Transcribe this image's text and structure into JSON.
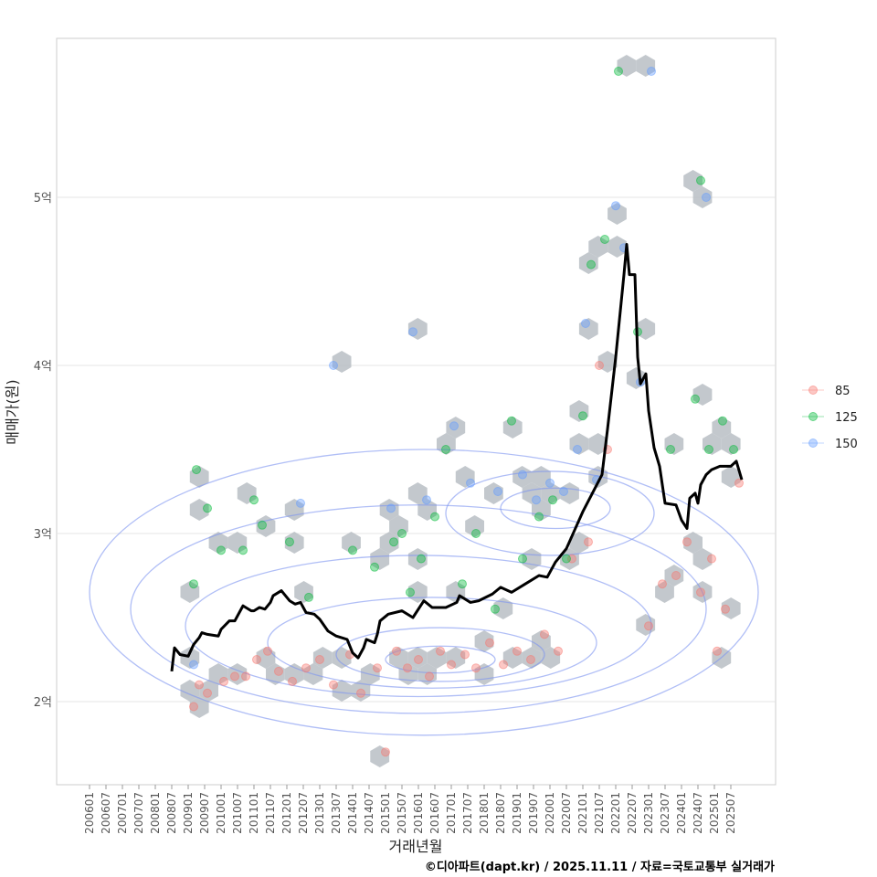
{
  "chart_data": {
    "type": "scatter",
    "title": "",
    "xlabel": "거래년월",
    "ylabel": "매매가(원)",
    "caption": "©디아파트(dapt.kr) / 2025.11.11 / 자료=국토교통부 실거래가",
    "x_ticks": [
      "200601",
      "200607",
      "200701",
      "200707",
      "200801",
      "200807",
      "200901",
      "200907",
      "201001",
      "201007",
      "201101",
      "201107",
      "201201",
      "201207",
      "201301",
      "201307",
      "201401",
      "201407",
      "201501",
      "201507",
      "201601",
      "201607",
      "201701",
      "201707",
      "201801",
      "201807",
      "201901",
      "201907",
      "202001",
      "202007",
      "202101",
      "202107",
      "202201",
      "202207",
      "202301",
      "202307",
      "202401",
      "202407",
      "202501",
      "202507"
    ],
    "y_ticks": [
      {
        "value": 2,
        "label": "2억"
      },
      {
        "value": 3,
        "label": "3억"
      },
      {
        "value": 4,
        "label": "4억"
      },
      {
        "value": 5,
        "label": "5억"
      }
    ],
    "ylim": [
      1.5,
      5.95
    ],
    "y_unit": "억원",
    "grid": "horizontal",
    "legend": {
      "position": "right",
      "entries": [
        {
          "label": "85",
          "color": "#F8766D"
        },
        {
          "label": "125",
          "color": "#00BA38"
        },
        {
          "label": "150",
          "color": "#619CFF"
        }
      ]
    },
    "series": [
      {
        "name": "85",
        "color": "#F8766D",
        "points": [
          [
            "2009-03",
            1.97
          ],
          [
            "2009-05",
            2.1
          ],
          [
            "2009-08",
            2.05
          ],
          [
            "2010-02",
            2.12
          ],
          [
            "2010-06",
            2.15
          ],
          [
            "2010-10",
            2.15
          ],
          [
            "2011-02",
            2.25
          ],
          [
            "2011-06",
            2.3
          ],
          [
            "2011-10",
            2.18
          ],
          [
            "2012-03",
            2.12
          ],
          [
            "2012-08",
            2.2
          ],
          [
            "2013-01",
            2.25
          ],
          [
            "2013-06",
            2.1
          ],
          [
            "2013-12",
            2.28
          ],
          [
            "2014-04",
            2.05
          ],
          [
            "2014-10",
            2.2
          ],
          [
            "2015-01",
            1.7
          ],
          [
            "2015-05",
            2.3
          ],
          [
            "2015-09",
            2.2
          ],
          [
            "2016-01",
            2.25
          ],
          [
            "2016-05",
            2.15
          ],
          [
            "2016-09",
            2.3
          ],
          [
            "2017-01",
            2.22
          ],
          [
            "2017-06",
            2.28
          ],
          [
            "2017-10",
            2.2
          ],
          [
            "2018-03",
            2.35
          ],
          [
            "2018-08",
            2.22
          ],
          [
            "2019-01",
            2.3
          ],
          [
            "2019-06",
            2.25
          ],
          [
            "2019-11",
            2.4
          ],
          [
            "2020-04",
            2.3
          ],
          [
            "2020-09",
            2.85
          ],
          [
            "2021-03",
            2.95
          ],
          [
            "2021-07",
            4.0
          ],
          [
            "2021-10",
            3.5
          ],
          [
            "2023-01",
            2.45
          ],
          [
            "2023-06",
            2.7
          ],
          [
            "2023-11",
            2.75
          ],
          [
            "2024-03",
            2.95
          ],
          [
            "2024-08",
            2.65
          ],
          [
            "2024-12",
            2.85
          ],
          [
            "2025-02",
            2.3
          ],
          [
            "2025-05",
            2.55
          ],
          [
            "2025-10",
            3.3
          ]
        ]
      },
      {
        "name": "125",
        "color": "#00BA38",
        "points": [
          [
            "2009-03",
            2.7
          ],
          [
            "2009-04",
            3.38
          ],
          [
            "2009-08",
            3.15
          ],
          [
            "2010-01",
            2.9
          ],
          [
            "2010-09",
            2.9
          ],
          [
            "2011-01",
            3.2
          ],
          [
            "2011-04",
            3.05
          ],
          [
            "2012-02",
            2.95
          ],
          [
            "2012-09",
            2.62
          ],
          [
            "2014-01",
            2.9
          ],
          [
            "2014-09",
            2.8
          ],
          [
            "2015-04",
            2.95
          ],
          [
            "2015-07",
            3.0
          ],
          [
            "2015-10",
            2.65
          ],
          [
            "2016-02",
            2.85
          ],
          [
            "2016-07",
            3.1
          ],
          [
            "2016-11",
            3.5
          ],
          [
            "2017-05",
            2.7
          ],
          [
            "2017-10",
            3.0
          ],
          [
            "2018-05",
            2.55
          ],
          [
            "2018-11",
            3.67
          ],
          [
            "2019-03",
            2.85
          ],
          [
            "2019-09",
            3.1
          ],
          [
            "2020-02",
            3.2
          ],
          [
            "2020-07",
            2.85
          ],
          [
            "2021-01",
            3.7
          ],
          [
            "2021-04",
            4.6
          ],
          [
            "2021-09",
            4.75
          ],
          [
            "2022-02",
            5.75
          ],
          [
            "2022-09",
            4.2
          ],
          [
            "2023-09",
            3.5
          ],
          [
            "2024-06",
            3.8
          ],
          [
            "2024-08",
            5.1
          ],
          [
            "2024-11",
            3.5
          ],
          [
            "2025-04",
            3.67
          ],
          [
            "2025-08",
            3.5
          ]
        ]
      },
      {
        "name": "150",
        "color": "#619CFF",
        "points": [
          [
            "2009-03",
            2.22
          ],
          [
            "2012-06",
            3.18
          ],
          [
            "2013-06",
            4.0
          ],
          [
            "2015-03",
            3.15
          ],
          [
            "2015-11",
            4.2
          ],
          [
            "2016-04",
            3.2
          ],
          [
            "2017-02",
            3.64
          ],
          [
            "2017-08",
            3.3
          ],
          [
            "2018-06",
            3.25
          ],
          [
            "2019-03",
            3.35
          ],
          [
            "2019-08",
            3.2
          ],
          [
            "2020-01",
            3.3
          ],
          [
            "2020-06",
            3.25
          ],
          [
            "2020-11",
            3.5
          ],
          [
            "2021-02",
            4.25
          ],
          [
            "2021-06",
            3.32
          ],
          [
            "2022-01",
            4.95
          ],
          [
            "2022-04",
            4.7
          ],
          [
            "2022-10",
            3.9
          ],
          [
            "2023-02",
            5.75
          ],
          [
            "2024-10",
            5.0
          ]
        ]
      }
    ],
    "trend_line": {
      "name": "median",
      "color": "#000000",
      "points": [
        [
          "2008-07",
          2.18
        ],
        [
          "2008-08",
          2.32
        ],
        [
          "2008-10",
          2.28
        ],
        [
          "2009-01",
          2.27
        ],
        [
          "2009-03",
          2.34
        ],
        [
          "2009-05",
          2.38
        ],
        [
          "2009-06",
          2.41
        ],
        [
          "2009-08",
          2.4
        ],
        [
          "2009-12",
          2.39
        ],
        [
          "2010-01",
          2.43
        ],
        [
          "2010-04",
          2.48
        ],
        [
          "2010-06",
          2.48
        ],
        [
          "2010-08",
          2.54
        ],
        [
          "2010-09",
          2.57
        ],
        [
          "2010-12",
          2.54
        ],
        [
          "2011-01",
          2.54
        ],
        [
          "2011-03",
          2.56
        ],
        [
          "2011-05",
          2.55
        ],
        [
          "2011-07",
          2.59
        ],
        [
          "2011-08",
          2.63
        ],
        [
          "2011-11",
          2.66
        ],
        [
          "2012-02",
          2.6
        ],
        [
          "2012-04",
          2.58
        ],
        [
          "2012-06",
          2.59
        ],
        [
          "2012-08",
          2.53
        ],
        [
          "2012-11",
          2.52
        ],
        [
          "2013-01",
          2.49
        ],
        [
          "2013-04",
          2.42
        ],
        [
          "2013-07",
          2.39
        ],
        [
          "2013-11",
          2.37
        ],
        [
          "2014-01",
          2.29
        ],
        [
          "2014-03",
          2.26
        ],
        [
          "2014-05",
          2.32
        ],
        [
          "2014-06",
          2.37
        ],
        [
          "2014-09",
          2.35
        ],
        [
          "2014-10",
          2.4
        ],
        [
          "2014-11",
          2.48
        ],
        [
          "2015-02",
          2.52
        ],
        [
          "2015-07",
          2.54
        ],
        [
          "2015-11",
          2.5
        ],
        [
          "2016-03",
          2.6
        ],
        [
          "2016-06",
          2.56
        ],
        [
          "2016-11",
          2.56
        ],
        [
          "2017-03",
          2.59
        ],
        [
          "2017-04",
          2.63
        ],
        [
          "2017-08",
          2.59
        ],
        [
          "2017-11",
          2.6
        ],
        [
          "2018-04",
          2.64
        ],
        [
          "2018-07",
          2.68
        ],
        [
          "2018-11",
          2.65
        ],
        [
          "2019-04",
          2.7
        ],
        [
          "2019-09",
          2.75
        ],
        [
          "2019-12",
          2.74
        ],
        [
          "2020-03",
          2.83
        ],
        [
          "2020-07",
          2.91
        ],
        [
          "2020-10",
          3.02
        ],
        [
          "2021-01",
          3.13
        ],
        [
          "2021-08",
          3.35
        ],
        [
          "2021-10",
          3.62
        ],
        [
          "2022-01",
          4.05
        ],
        [
          "2022-04",
          4.54
        ],
        [
          "2022-05",
          4.72
        ],
        [
          "2022-06",
          4.54
        ],
        [
          "2022-08",
          4.54
        ],
        [
          "2022-09",
          4.05
        ],
        [
          "2022-10",
          3.89
        ],
        [
          "2022-12",
          3.95
        ],
        [
          "2023-01",
          3.73
        ],
        [
          "2023-03",
          3.51
        ],
        [
          "2023-05",
          3.4
        ],
        [
          "2023-07",
          3.18
        ],
        [
          "2023-11",
          3.17
        ],
        [
          "2024-01",
          3.08
        ],
        [
          "2024-03",
          3.03
        ],
        [
          "2024-04",
          3.21
        ],
        [
          "2024-06",
          3.24
        ],
        [
          "2024-07",
          3.18
        ],
        [
          "2024-08",
          3.29
        ],
        [
          "2024-10",
          3.35
        ],
        [
          "2024-12",
          3.38
        ],
        [
          "2025-03",
          3.4
        ],
        [
          "2025-07",
          3.4
        ],
        [
          "2025-09",
          3.43
        ],
        [
          "2025-11",
          3.32
        ]
      ]
    },
    "density_contours": [
      {
        "center": [
          "2016-09",
          2.25
        ],
        "rx_months": 20,
        "ry": 0.08
      },
      {
        "center": [
          "2016-09",
          2.28
        ],
        "rx_months": 38,
        "ry": 0.16
      },
      {
        "center": [
          "2016-06",
          2.35
        ],
        "rx_months": 60,
        "ry": 0.27
      },
      {
        "center": [
          "2016-01",
          2.45
        ],
        "rx_months": 85,
        "ry": 0.42
      },
      {
        "center": [
          "2016-01",
          2.55
        ],
        "rx_months": 105,
        "ry": 0.62
      },
      {
        "center": [
          "2016-03",
          2.65
        ],
        "rx_months": 122,
        "ry": 0.85
      },
      {
        "center": [
          "2020-03",
          3.15
        ],
        "rx_months": 20,
        "ry": 0.12
      },
      {
        "center": [
          "2020-01",
          3.12
        ],
        "rx_months": 38,
        "ry": 0.25
      }
    ]
  }
}
